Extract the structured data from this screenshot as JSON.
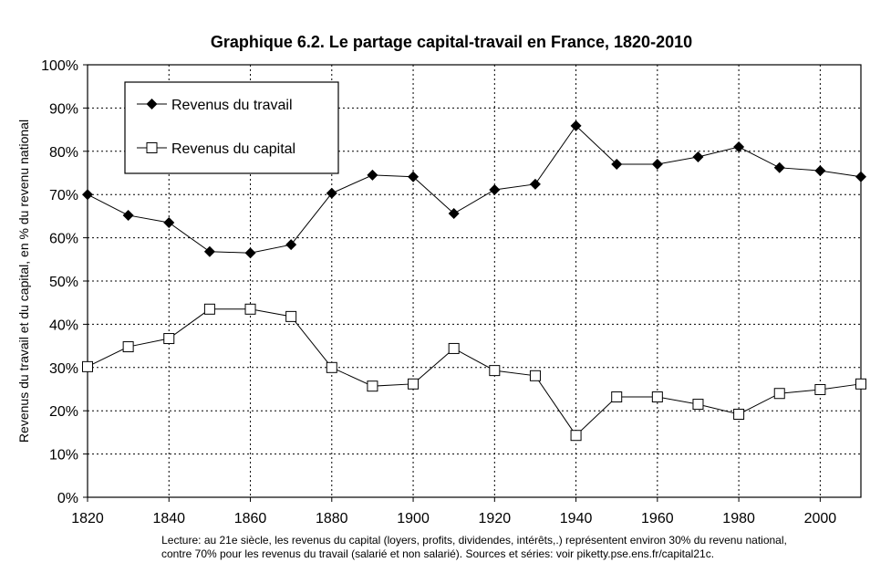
{
  "chart_data": {
    "type": "line",
    "title": "Graphique 6.2. Le partage capital-travail en France, 1820-2010",
    "ylabel": "Revenus du travail et du capital, en % du revenu national",
    "xlabel": "",
    "xlim": [
      1820,
      2010
    ],
    "ylim": [
      0,
      100
    ],
    "x_ticks": [
      "1820",
      "1840",
      "1860",
      "1880",
      "1900",
      "1920",
      "1940",
      "1960",
      "1980",
      "2000"
    ],
    "y_ticks": [
      "0%",
      "10%",
      "20%",
      "30%",
      "40%",
      "50%",
      "60%",
      "70%",
      "80%",
      "90%",
      "100%"
    ],
    "grid": "dotted",
    "legend_position": "top-left",
    "x": [
      1820,
      1830,
      1840,
      1850,
      1860,
      1870,
      1880,
      1890,
      1900,
      1910,
      1920,
      1930,
      1940,
      1950,
      1960,
      1970,
      1980,
      1990,
      2000,
      2010
    ],
    "series": [
      {
        "name": "Revenus du travail",
        "marker": "filled-diamond",
        "values": [
          70.0,
          65.2,
          63.5,
          56.8,
          56.5,
          58.4,
          70.3,
          74.5,
          74.1,
          65.6,
          71.1,
          72.4,
          85.9,
          77.0,
          77.0,
          78.7,
          81.0,
          76.2,
          75.5,
          74.1
        ]
      },
      {
        "name": "Revenus du capital",
        "marker": "open-square",
        "values": [
          30.2,
          34.8,
          36.7,
          43.5,
          43.5,
          41.8,
          30.0,
          25.7,
          26.2,
          34.4,
          29.3,
          28.1,
          14.3,
          23.2,
          23.2,
          21.5,
          19.2,
          24.0,
          24.9,
          26.2
        ]
      }
    ],
    "note_line1": "Lecture: au 21e siècle, les revenus du capital (loyers, profits, dividendes, intérêts,.) représentent environ 30% du revenu national,",
    "note_line2": "contre 70% pour les revenus du travail (salarié et non salarié). Sources et séries: voir piketty.pse.ens.fr/capital21c."
  }
}
